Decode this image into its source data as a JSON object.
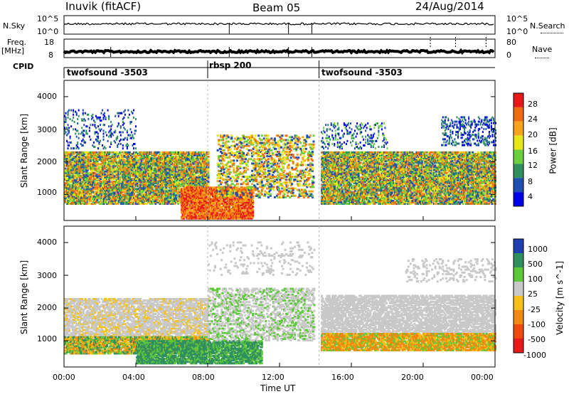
{
  "header": {
    "station": "Inuvik (fitACF)",
    "beam": "Beam 05",
    "date": "24/Aug/2014"
  },
  "top_panels": {
    "nsky_label": "N.Sky",
    "nsearch_label": "N.Search",
    "freq_label": "Freq.",
    "freq_unit": "[MHz]",
    "nave_label": "Nave",
    "cpid_label": "CPID",
    "nsky_ticks": [
      "10^5",
      "10^0"
    ],
    "nsearch_ticks": [
      "10^5",
      "10^0"
    ],
    "freq_ticks": [
      "18",
      "8"
    ],
    "nave_ticks": [
      "80",
      "0"
    ]
  },
  "cpid_segments": [
    {
      "name": "twofsound -3503",
      "start_hour": 0.0,
      "end_hour": 8.0
    },
    {
      "name": "rbsp 200",
      "start_hour": 8.0,
      "end_hour": 14.2
    },
    {
      "name": "twofsound -3503",
      "start_hour": 14.2,
      "end_hour": 24.0
    }
  ],
  "x_axis": {
    "title": "Time UT",
    "ticks": [
      "00:00",
      "04:00",
      "08:00",
      "12:00",
      "16:00",
      "20:00",
      "00:00"
    ],
    "range_hours": [
      0,
      24
    ]
  },
  "chart_data": [
    {
      "type": "heatmap",
      "title": "",
      "xlabel": "Time UT",
      "ylabel": "Slant Range [km]",
      "yticks": [
        "1000",
        "2000",
        "3000",
        "4000"
      ],
      "ylim": [
        200,
        4500
      ],
      "colorbar_label": "Power [dB]",
      "colorbar_ticks": [
        "4",
        "8",
        "12",
        "16",
        "20",
        "24",
        "28"
      ],
      "colors": [
        "#0000e6",
        "#1f4fb0",
        "#2f8f5f",
        "#6bcf3f",
        "#e6e61a",
        "#f5a31a",
        "#f06a10",
        "#e61a1a"
      ],
      "clim": [
        0,
        32
      ]
    },
    {
      "type": "heatmap",
      "title": "",
      "xlabel": "Time UT",
      "ylabel": "Slant Range [km]",
      "yticks": [
        "1000",
        "2000",
        "3000",
        "4000"
      ],
      "ylim": [
        200,
        4500
      ],
      "colorbar_label": "Velocity [m s^-1]",
      "colorbar_ticks": [
        "1000",
        "500",
        "100",
        "25",
        "-25",
        "-100",
        "-500",
        "-1000"
      ],
      "colors": [
        "#1f3fb0",
        "#2f8f5f",
        "#5fc83a",
        "#c8c8c8",
        "#f5c01a",
        "#f08a10",
        "#f04a10",
        "#e61a1a"
      ],
      "clim": [
        -1200,
        1200
      ]
    }
  ]
}
